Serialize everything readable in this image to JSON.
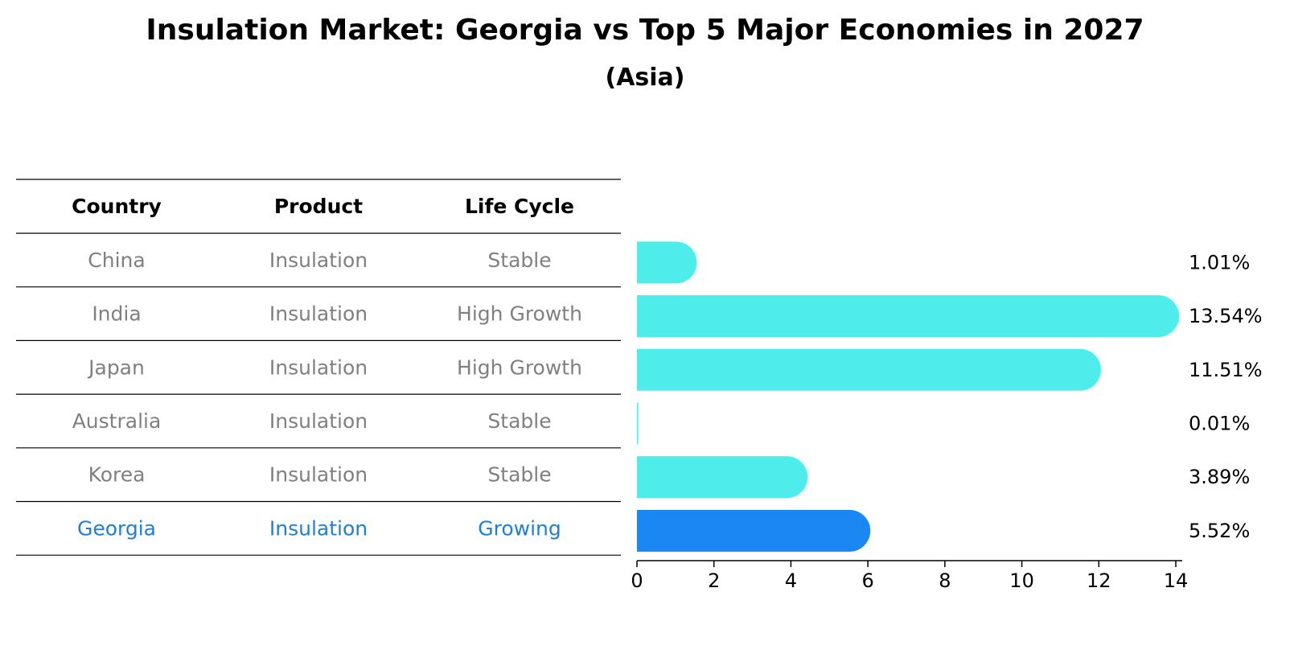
{
  "title": "Insulation Market: Georgia vs Top 5 Major Economies in 2027",
  "subtitle": "(Asia)",
  "colors": {
    "bar_default": "#4EECEA",
    "bar_highlight": "#1A87F2",
    "text_muted": "#808080",
    "text_highlight": "#1E7FD8",
    "rule": "#000000"
  },
  "chart_data": {
    "type": "bar",
    "orientation": "horizontal",
    "categories": [
      "China",
      "India",
      "Japan",
      "Australia",
      "Korea",
      "Georgia"
    ],
    "values": [
      1.01,
      13.54,
      11.51,
      0.01,
      3.89,
      5.52
    ],
    "value_labels": [
      "1.01%",
      "13.54%",
      "11.51%",
      "0.01%",
      "3.89%",
      "5.52%"
    ],
    "highlight": "Georgia",
    "xlim": [
      0,
      14
    ],
    "xticks": [
      "0",
      "2",
      "4",
      "6",
      "8",
      "10",
      "12",
      "14"
    ],
    "xlabel": "",
    "ylabel": "",
    "grid": false
  },
  "table": {
    "headers": [
      "Country",
      "Product",
      "Life Cycle"
    ],
    "rows": [
      [
        "China",
        "Insulation",
        "Stable"
      ],
      [
        "India",
        "Insulation",
        "High Growth"
      ],
      [
        "Japan",
        "Insulation",
        "High Growth"
      ],
      [
        "Australia",
        "Insulation",
        "Stable"
      ],
      [
        "Korea",
        "Insulation",
        "Stable"
      ],
      [
        "Georgia",
        "Insulation",
        "Growing"
      ]
    ]
  }
}
